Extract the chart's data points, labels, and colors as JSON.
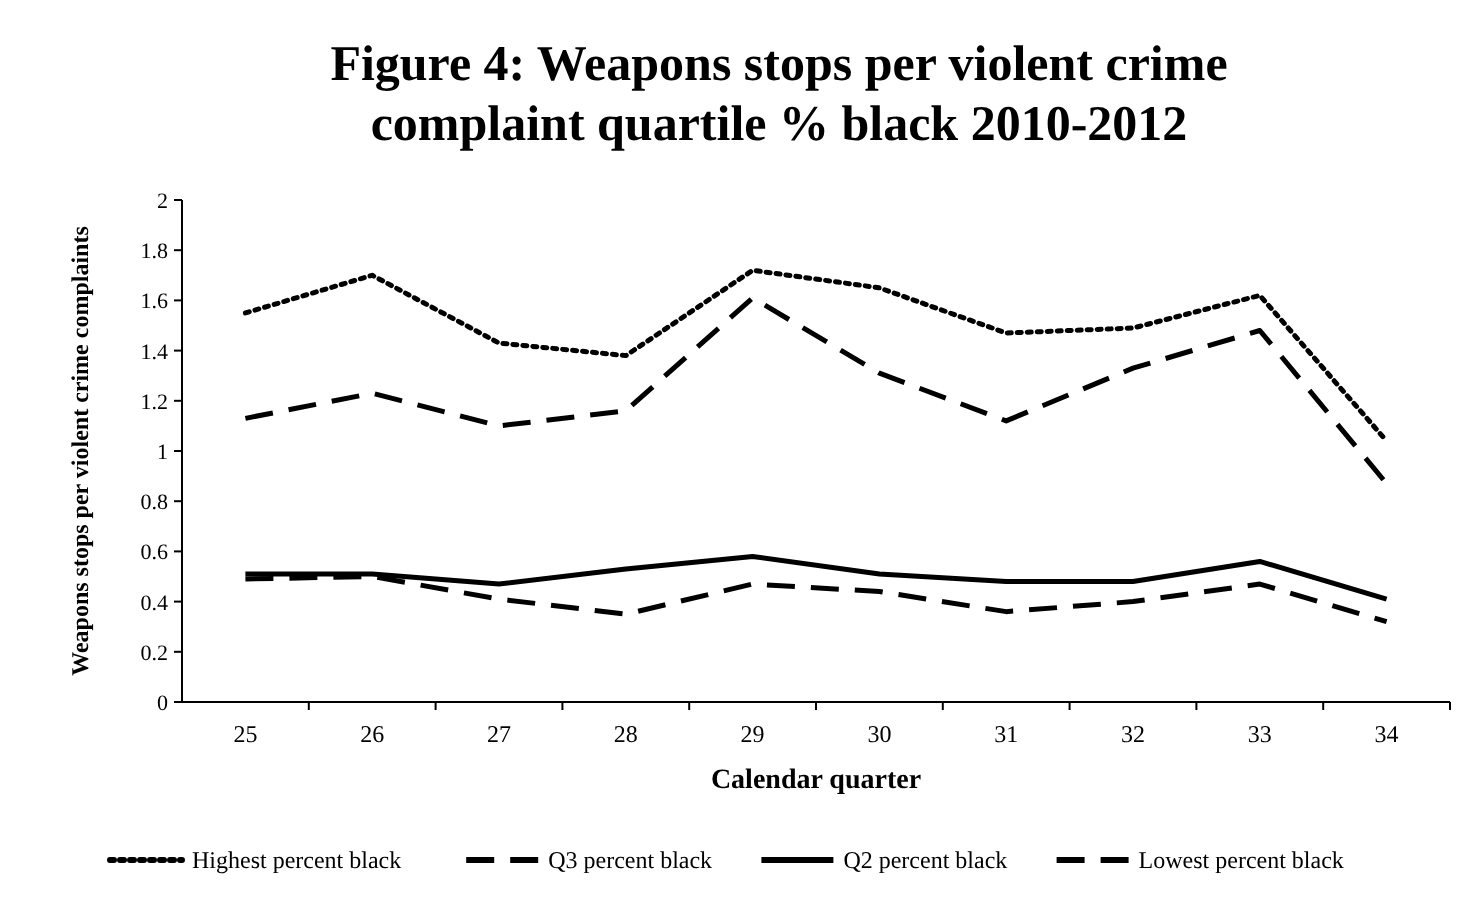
{
  "chart_data": {
    "type": "line",
    "title": "Figure 4: Weapons stops per  violent crime complaint quartile % black 2010-2012",
    "xlabel": "Calendar quarter",
    "ylabel": "Weapons stops per violent crime complaints",
    "categories": [
      "25",
      "26",
      "27",
      "28",
      "29",
      "30",
      "31",
      "32",
      "33",
      "34"
    ],
    "ylim": [
      0,
      2
    ],
    "yticks": [
      0,
      0.2,
      0.4,
      0.6,
      0.8,
      1,
      1.2,
      1.4,
      1.6,
      1.8,
      2
    ],
    "grid": false,
    "legend": "bottom",
    "marker": "none",
    "series": [
      {
        "name": "Highest percent black",
        "color": "#000000",
        "line_style": "dotted",
        "values": [
          1.55,
          1.7,
          1.43,
          1.38,
          1.72,
          1.65,
          1.47,
          1.49,
          1.62,
          1.04
        ]
      },
      {
        "name": "Q3 percent black",
        "color": "#000000",
        "line_style": "dashed",
        "values": [
          1.13,
          1.23,
          1.1,
          1.16,
          1.61,
          1.31,
          1.12,
          1.33,
          1.48,
          0.87
        ]
      },
      {
        "name": "Q2 percent black",
        "color": "#000000",
        "line_style": "solid",
        "values": [
          0.51,
          0.51,
          0.47,
          0.53,
          0.58,
          0.51,
          0.48,
          0.48,
          0.56,
          0.41
        ]
      },
      {
        "name": "Lowest percent black",
        "color": "#000000",
        "line_style": "dashed",
        "values": [
          0.49,
          0.5,
          0.41,
          0.35,
          0.47,
          0.44,
          0.36,
          0.4,
          0.47,
          0.32
        ]
      }
    ]
  }
}
